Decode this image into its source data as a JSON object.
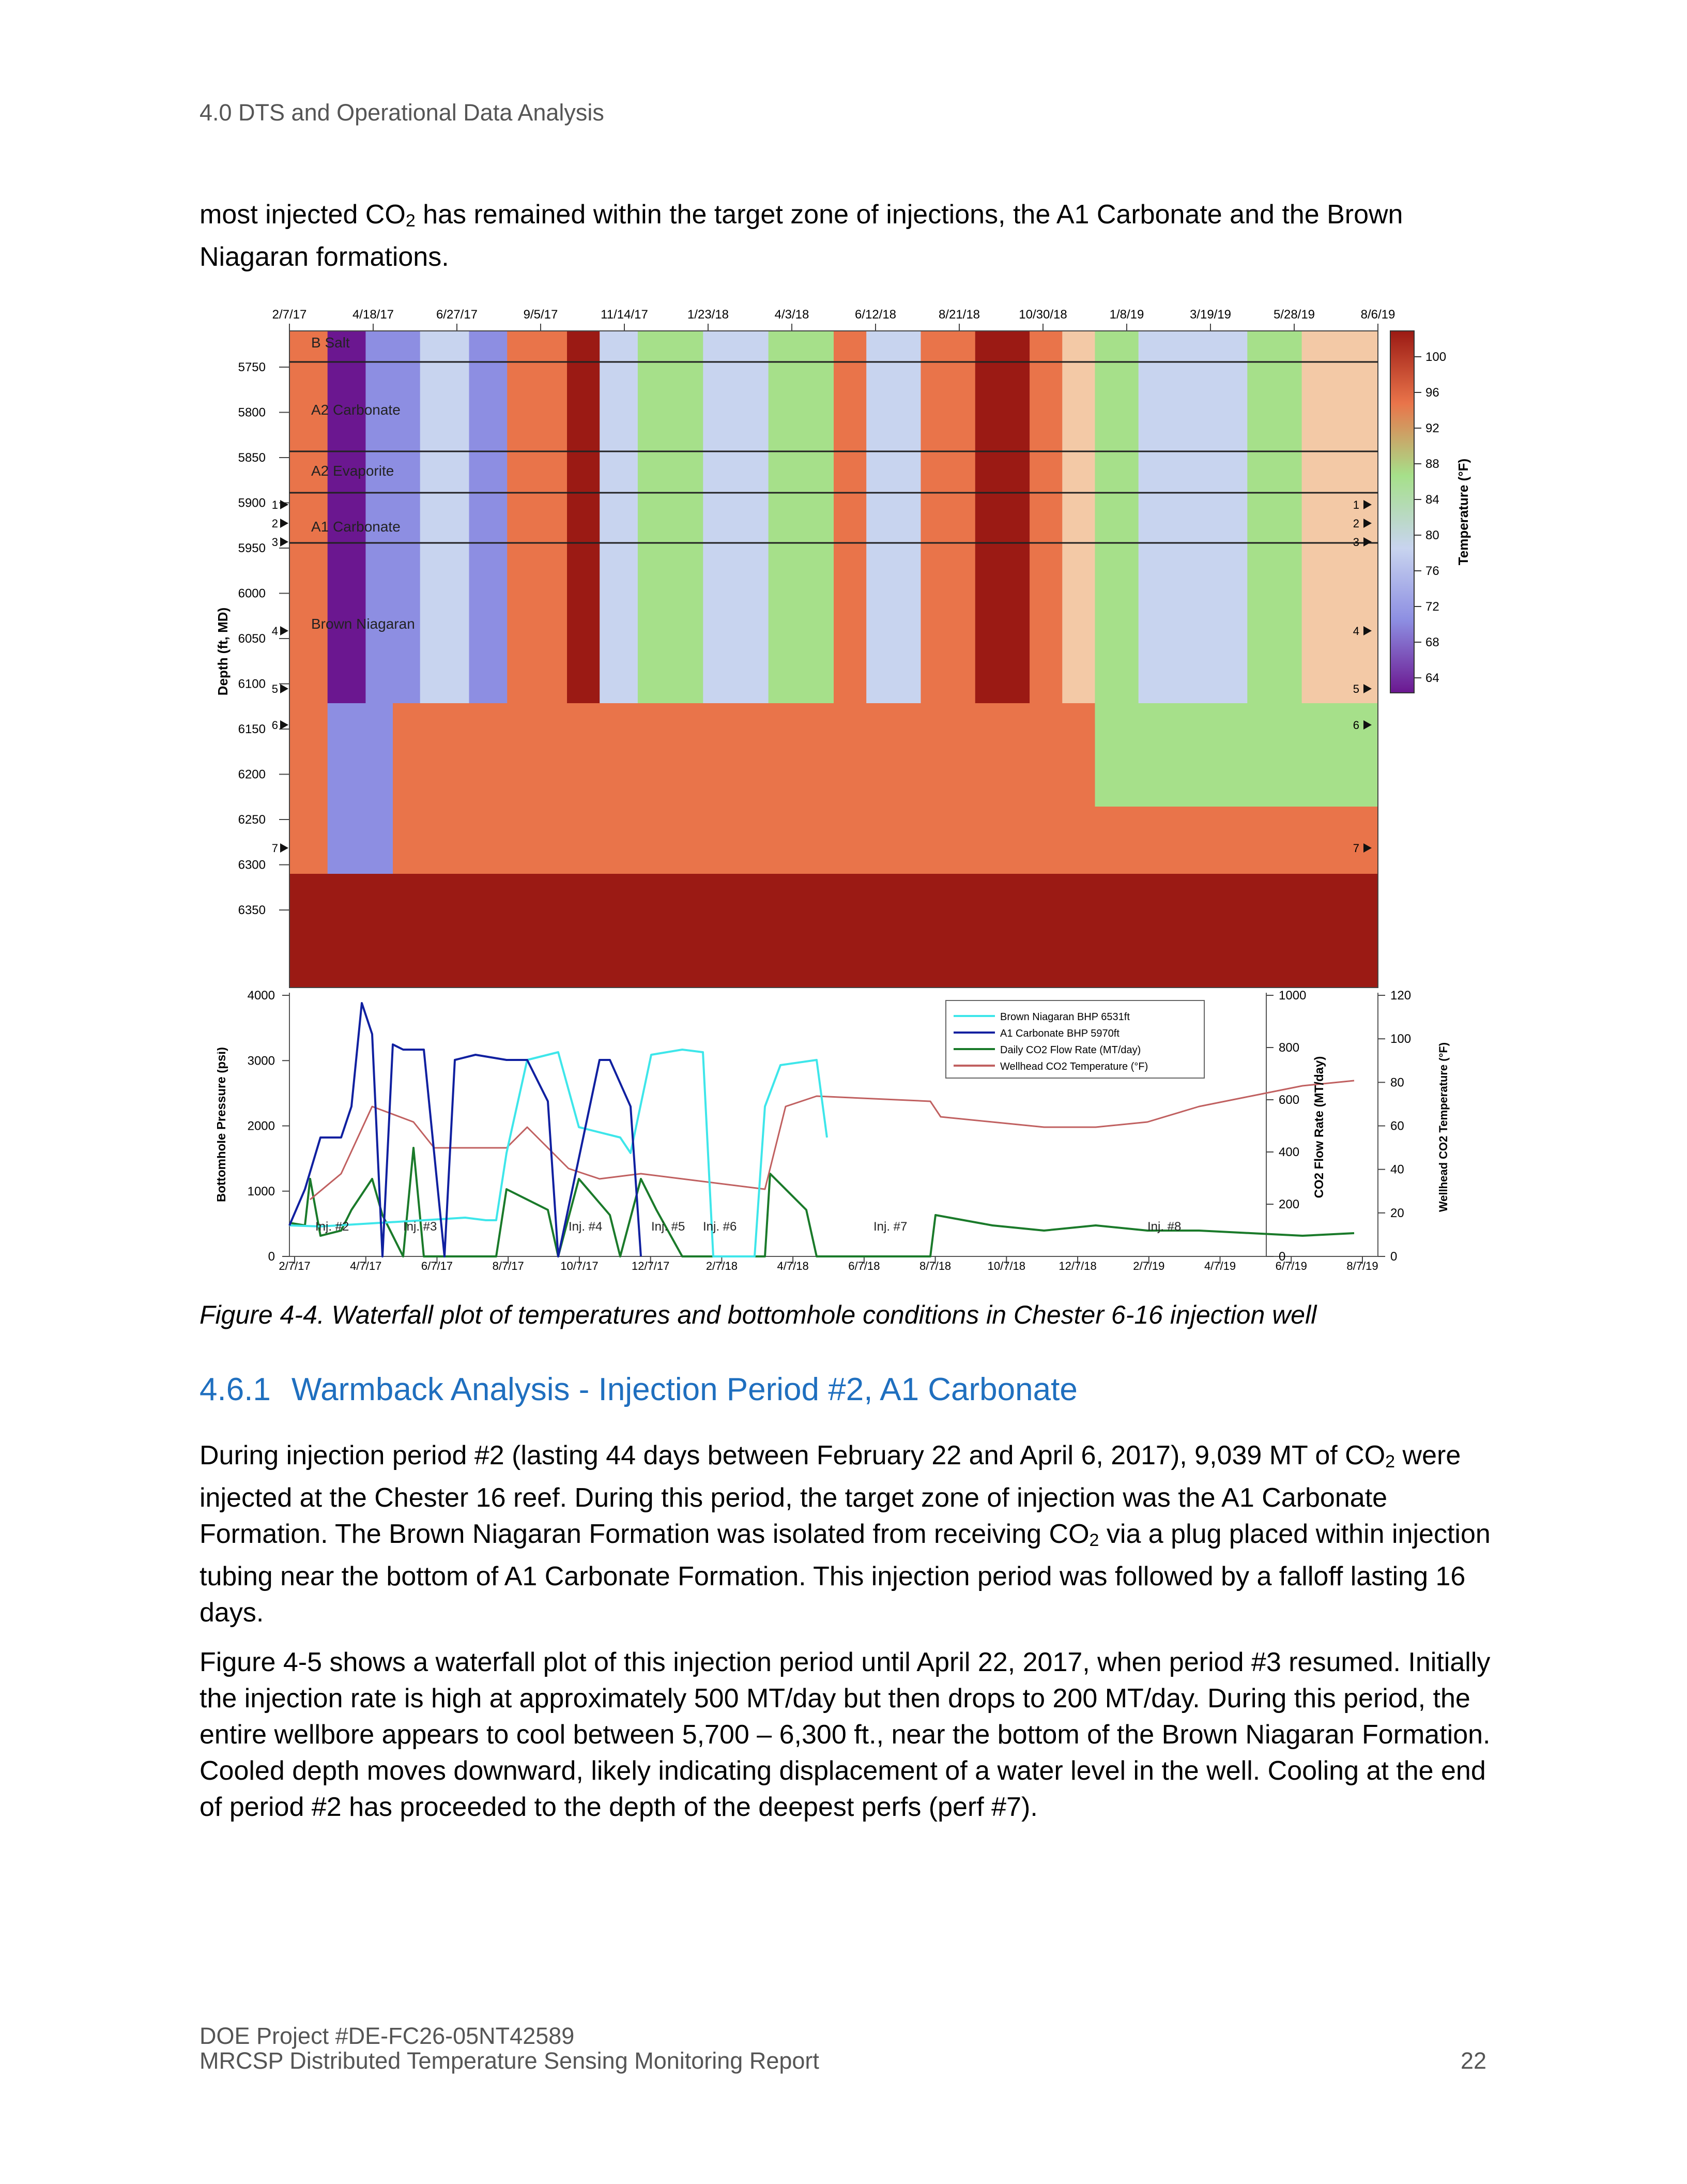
{
  "header": {
    "running_title": "4.0 DTS and Operational Data Analysis"
  },
  "intro": {
    "pre": "most injected CO",
    "sub": "2",
    "post": " has remained within the target zone of injections, the A1 Carbonate and the Brown Niagaran formations."
  },
  "figure": {
    "caption": "Figure 4-4. Waterfall plot of temperatures and bottomhole conditions in Chester 6-16 injection well",
    "top_dates": [
      "2/7/17",
      "4/18/17",
      "6/27/17",
      "9/5/17",
      "11/14/17",
      "1/23/18",
      "4/3/18",
      "6/12/18",
      "8/21/18",
      "10/30/18",
      "1/8/19",
      "3/19/19",
      "5/28/19",
      "8/6/19"
    ],
    "depth_ticks": [
      "5750",
      "5800",
      "5850",
      "5900",
      "5950",
      "6000",
      "6050",
      "6100",
      "6150",
      "6200",
      "6250",
      "6300",
      "6350"
    ],
    "depth_label": "Depth (ft, MD)",
    "formations": [
      "B Salt",
      "A2 Carbonate",
      "A2 Evaporite",
      "A1 Carbonate",
      "Brown Niagaran"
    ],
    "perfs_left": [
      "1",
      "2",
      "3",
      "4",
      "5",
      "6",
      "7"
    ],
    "perfs_right": [
      "1",
      "2",
      "3",
      "4",
      "5",
      "6",
      "7"
    ],
    "colorbar_ticks": [
      "100",
      "96",
      "92",
      "88",
      "84",
      "80",
      "76",
      "72",
      "68",
      "64"
    ],
    "colorbar_label": "Temperature (°F)",
    "colors": {
      "hot": "#9b1a14",
      "warm": "#e9744a",
      "mid": "#f3c9a6",
      "green": "#a6e08a",
      "cool": "#c8d4ef",
      "cold": "#8d8ee2",
      "coldest": "#6b1790",
      "bhp_brown": "#3ee6ea",
      "bhp_a1": "#1020a0",
      "flow": "#1a7a2a",
      "wellhead": "#c06060"
    },
    "bottom": {
      "pressure_ticks": [
        "4000",
        "3000",
        "2000",
        "1000",
        "0"
      ],
      "pressure_label": "Bottomhole Pressure (psi)",
      "flow_ticks": [
        "1000",
        "800",
        "600",
        "400",
        "200",
        "0"
      ],
      "flow_label": "CO2 Flow Rate (MT/day)",
      "temp_ticks": [
        "120",
        "100",
        "80",
        "60",
        "40",
        "20",
        "0"
      ],
      "temp_label": "Wellhead CO2 Temperature (°F)",
      "bottom_dates": [
        "2/7/17",
        "4/7/17",
        "6/7/17",
        "8/7/17",
        "10/7/17",
        "12/7/17",
        "2/7/18",
        "4/7/18",
        "6/7/18",
        "8/7/18",
        "10/7/18",
        "12/7/18",
        "2/7/19",
        "4/7/19",
        "6/7/19",
        "8/7/19"
      ],
      "injections": [
        "Inj. #2",
        "Inj. #3",
        "Inj. #4",
        "Inj. #5",
        "Inj. #6",
        "Inj. #7",
        "Inj. #8"
      ],
      "legend": [
        "Brown Niagaran BHP 6531ft",
        "A1 Carbonate BHP 5970ft",
        "Daily CO2 Flow Rate (MT/day)",
        "Wellhead CO2 Temperature (°F)"
      ]
    }
  },
  "section": {
    "number": "4.6.1",
    "title": "Warmback Analysis - Injection Period #2, A1 Carbonate"
  },
  "para1": {
    "a": "During injection period #2 (lasting 44 days between February 22 and April 6, 2017), 9,039 MT of CO",
    "a_sub": "2",
    "b": " were injected at the Chester 16 reef. During this period, the target zone of injection was the A1 Carbonate Formation. The Brown Niagaran Formation was isolated from receiving CO",
    "b_sub": "2",
    "c": " via a plug placed within injection tubing near the bottom of A1 Carbonate Formation. This injection period was followed by a falloff lasting 16 days."
  },
  "para2": {
    "text": "Figure 4-5 shows a waterfall plot of this injection period until April 22, 2017, when period #3 resumed. Initially the injection rate is high at approximately 500 MT/day but then drops to 200 MT/day. During this period, the entire wellbore appears to cool between 5,700 – 6,300 ft., near the bottom of the Brown Niagaran Formation. Cooled depth moves downward, likely indicating displacement of a water level in the well. Cooling at the end of period #2 has proceeded to the depth of the deepest perfs (perf #7)."
  },
  "footer": {
    "project": "DOE Project #DE-FC26-05NT42589",
    "report": "MRCSP Distributed Temperature Sensing Monitoring Report",
    "page": "22"
  }
}
